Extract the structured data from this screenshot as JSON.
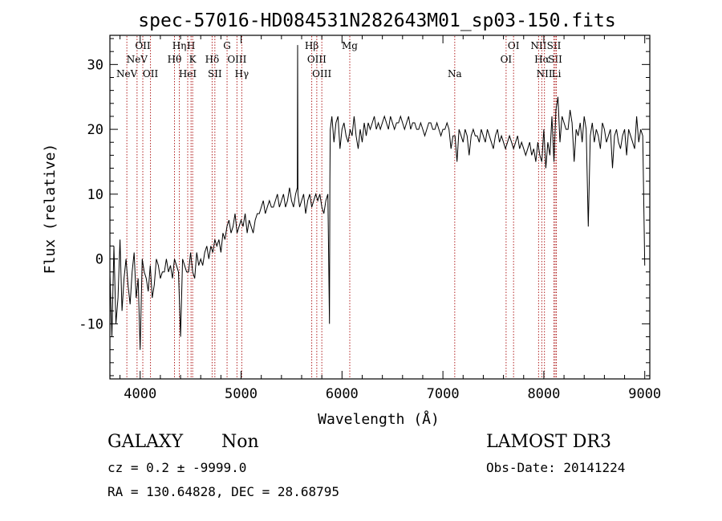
{
  "chart_data": {
    "type": "line",
    "title": "spec-57016-HD084531N282643M01_sp03-150.fits",
    "xlabel": "Wavelength (Å)",
    "ylabel": "Flux (relative)",
    "xlim": [
      3700,
      9050
    ],
    "ylim": [
      -18.5,
      34.5
    ],
    "xticks": [
      4000,
      5000,
      6000,
      7000,
      8000,
      9000
    ],
    "yticks": [
      -10,
      0,
      10,
      20,
      30
    ],
    "grid": false,
    "legend": "none",
    "line_color": "#000000",
    "marker_color": "#b22222",
    "series": [
      {
        "x": [
          3700,
          3720,
          3740,
          3760,
          3780,
          3800,
          3820,
          3840,
          3860,
          3880,
          3900,
          3920,
          3940,
          3960,
          3980,
          4000,
          4020,
          4040,
          4060,
          4080,
          4100,
          4120,
          4140,
          4160,
          4180,
          4200,
          4220,
          4240,
          4260,
          4280,
          4300,
          4320,
          4340,
          4360,
          4380,
          4400,
          4420,
          4440,
          4460,
          4480,
          4500,
          4520,
          4540,
          4560,
          4580,
          4600,
          4620,
          4640,
          4660,
          4680,
          4700,
          4720,
          4740,
          4760,
          4780,
          4800,
          4820,
          4840,
          4860,
          4880,
          4900,
          4920,
          4940,
          4960,
          4980,
          5000,
          5020,
          5040,
          5060,
          5080,
          5100,
          5120,
          5140,
          5160,
          5180,
          5200,
          5220,
          5240,
          5260,
          5280,
          5300,
          5320,
          5340,
          5360,
          5380,
          5400,
          5420,
          5440,
          5460,
          5480,
          5500,
          5520,
          5540,
          5557,
          5560,
          5563,
          5580,
          5600,
          5620,
          5640,
          5660,
          5680,
          5700,
          5720,
          5740,
          5760,
          5780,
          5800,
          5820,
          5840,
          5860,
          5876,
          5880,
          5884,
          5900,
          5920,
          5940,
          5960,
          5980,
          6000,
          6020,
          6040,
          6060,
          6080,
          6100,
          6120,
          6140,
          6160,
          6180,
          6200,
          6220,
          6240,
          6260,
          6280,
          6300,
          6320,
          6340,
          6360,
          6380,
          6400,
          6420,
          6440,
          6460,
          6480,
          6500,
          6520,
          6540,
          6560,
          6580,
          6600,
          6620,
          6640,
          6660,
          6680,
          6700,
          6720,
          6740,
          6760,
          6780,
          6800,
          6820,
          6840,
          6860,
          6880,
          6900,
          6920,
          6940,
          6960,
          6980,
          7000,
          7020,
          7040,
          7060,
          7080,
          7100,
          7120,
          7140,
          7160,
          7180,
          7200,
          7220,
          7240,
          7260,
          7280,
          7300,
          7320,
          7340,
          7360,
          7380,
          7400,
          7420,
          7440,
          7460,
          7480,
          7500,
          7520,
          7540,
          7560,
          7580,
          7600,
          7620,
          7640,
          7660,
          7680,
          7700,
          7720,
          7740,
          7760,
          7780,
          7800,
          7820,
          7840,
          7860,
          7880,
          7900,
          7920,
          7940,
          7960,
          7980,
          8000,
          8020,
          8040,
          8060,
          8080,
          8100,
          8120,
          8140,
          8160,
          8180,
          8200,
          8220,
          8240,
          8260,
          8280,
          8300,
          8320,
          8340,
          8360,
          8380,
          8400,
          8420,
          8440,
          8460,
          8480,
          8500,
          8520,
          8540,
          8560,
          8580,
          8600,
          8620,
          8640,
          8660,
          8680,
          8700,
          8720,
          8740,
          8760,
          8780,
          8800,
          8820,
          8840,
          8860,
          8880,
          8900,
          8920,
          8940,
          8960,
          8980,
          9000
        ],
        "y": [
          -2,
          -12,
          2,
          -10,
          -6,
          3,
          -8,
          -3,
          0,
          -4,
          -7,
          -2,
          1,
          -6,
          -3,
          -14,
          0,
          -2,
          -3,
          -5,
          -1,
          -6,
          -4,
          0,
          -1,
          -3,
          -2,
          -2,
          0,
          -2,
          -1,
          -3,
          0,
          -1,
          -2,
          -12,
          0,
          -1,
          -2,
          -2,
          1,
          -2,
          -3,
          1,
          -1,
          0,
          -1,
          1,
          2,
          0,
          2,
          1,
          3,
          2,
          3,
          1,
          4,
          3,
          5,
          6,
          4,
          5,
          7,
          4,
          5,
          6,
          5,
          7,
          4,
          6,
          5,
          4,
          6,
          7,
          7,
          8,
          9,
          7,
          8,
          9,
          8,
          8,
          9,
          10,
          8,
          9,
          10,
          8,
          9,
          11,
          9,
          8,
          10,
          11,
          33,
          10,
          8,
          9,
          10,
          7,
          9,
          10,
          8,
          9,
          10,
          9,
          10,
          8,
          7,
          9,
          10,
          -10,
          12,
          20,
          22,
          18,
          21,
          22,
          17,
          20,
          21,
          19,
          18,
          20,
          19,
          22,
          19,
          17,
          20,
          18,
          21,
          19,
          21,
          20,
          21,
          22,
          20,
          21,
          20,
          21,
          22,
          21,
          20,
          22,
          21,
          20,
          21,
          21,
          22,
          21,
          20,
          21,
          22,
          20,
          21,
          21,
          20,
          20,
          21,
          20,
          19,
          20,
          21,
          21,
          20,
          20,
          21,
          20,
          19,
          20,
          20,
          21,
          20,
          17,
          19,
          19,
          15,
          20,
          19,
          18,
          20,
          19,
          16,
          19,
          20,
          19,
          19,
          18,
          20,
          19,
          18,
          20,
          19,
          18,
          17,
          19,
          20,
          18,
          19,
          18,
          17,
          18,
          19,
          18,
          17,
          18,
          19,
          17,
          18,
          17,
          16,
          17,
          18,
          16,
          17,
          15,
          18,
          16,
          15,
          20,
          14,
          18,
          16,
          22,
          15,
          23,
          25,
          18,
          22,
          21,
          20,
          20,
          23,
          21,
          15,
          20,
          19,
          21,
          18,
          22,
          20,
          5,
          19,
          21,
          18,
          20,
          19,
          17,
          21,
          20,
          18,
          19,
          20,
          14,
          19,
          20,
          18,
          17,
          19,
          20,
          16,
          20,
          19,
          18,
          17,
          22,
          18,
          20,
          19,
          -1
        ]
      }
    ],
    "markers": [
      {
        "label": "NeV",
        "x": 3868,
        "row": 3
      },
      {
        "label": "NeV",
        "x": 3969,
        "row": 2
      },
      {
        "label": "OII",
        "x": 4026,
        "row": 1
      },
      {
        "label": "OII",
        "x": 4102,
        "row": 3
      },
      {
        "label": "Hθ",
        "x": 4340,
        "row": 2
      },
      {
        "label": "Hη",
        "x": 4388,
        "row": 1
      },
      {
        "label": "HeI",
        "x": 4471,
        "row": 3
      },
      {
        "label": "H",
        "x": 4504,
        "row": 1
      },
      {
        "label": "K",
        "x": 4520,
        "row": 2
      },
      {
        "label": "Hδ",
        "x": 4713,
        "row": 2
      },
      {
        "label": "SII",
        "x": 4740,
        "row": 3
      },
      {
        "label": "G",
        "x": 4861,
        "row": 1
      },
      {
        "label": "OIII",
        "x": 4959,
        "row": 2
      },
      {
        "label": "Hγ",
        "x": 5007,
        "row": 3
      },
      {
        "label": "Hβ",
        "x": 5700,
        "row": 1
      },
      {
        "label": "OIII",
        "x": 5750,
        "row": 2
      },
      {
        "label": "OIII",
        "x": 5800,
        "row": 3
      },
      {
        "label": "Mg",
        "x": 6077,
        "row": 1
      },
      {
        "label": "Na",
        "x": 7117,
        "row": 3
      },
      {
        "label": "OI",
        "x": 7626,
        "row": 2
      },
      {
        "label": "OI",
        "x": 7700,
        "row": 1
      },
      {
        "label": "NII",
        "x": 7948,
        "row": 1
      },
      {
        "label": "Hα",
        "x": 7980,
        "row": 2
      },
      {
        "label": "NII",
        "x": 8006,
        "row": 3
      },
      {
        "label": "SII",
        "x": 8100,
        "row": 1
      },
      {
        "label": "SII",
        "x": 8112,
        "row": 2
      },
      {
        "label": "Li",
        "x": 8124,
        "row": 3
      }
    ]
  },
  "info": {
    "class": "GALAXY",
    "subclass": "Non",
    "survey": "LAMOST DR3",
    "cz": "cz = 0.2 ± -9999.0",
    "obs_date": "Obs-Date: 20141224",
    "coords": "RA = 130.64828, DEC =  28.68795"
  }
}
